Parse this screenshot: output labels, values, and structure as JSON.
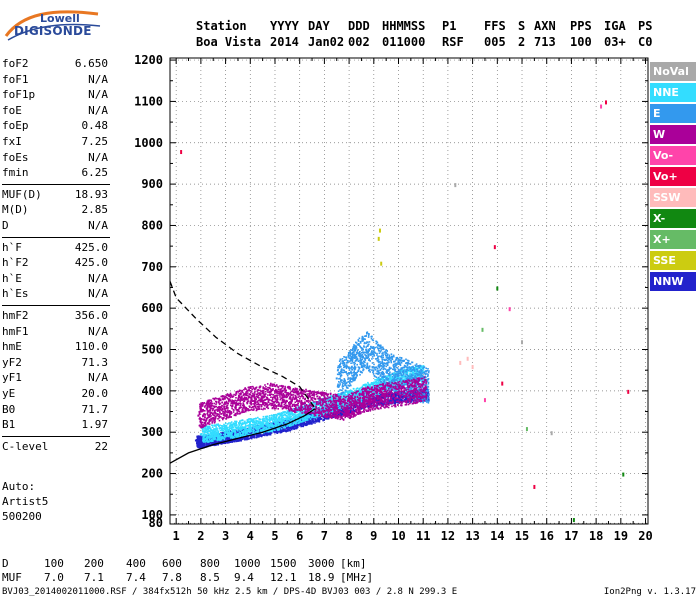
{
  "logo": {
    "line1": "Lowell",
    "line2": "DIGISONDE"
  },
  "header": {
    "row1": [
      "Station",
      "YYYY",
      "DAY",
      "DDD",
      "HHMMSS",
      "P1",
      "FFS",
      "S",
      "AXN",
      "PPS",
      "IGA",
      "PS"
    ],
    "row2": [
      "Boa Vista",
      "2014",
      "Jan02",
      "002",
      "011000",
      "RSF",
      "005",
      "2",
      "713",
      "100",
      "03+",
      "C0"
    ]
  },
  "params": [
    {
      "k": "foF2",
      "v": "6.650"
    },
    {
      "k": "foF1",
      "v": "N/A"
    },
    {
      "k": "foF1p",
      "v": "N/A"
    },
    {
      "k": "foE",
      "v": "N/A"
    },
    {
      "k": "foEp",
      "v": "0.48"
    },
    {
      "k": "fxI",
      "v": "7.25"
    },
    {
      "k": "foEs",
      "v": "N/A"
    },
    {
      "k": "fmin",
      "v": "6.25"
    },
    {
      "k": "MUF(D)",
      "v": "18.93"
    },
    {
      "k": "M(D)",
      "v": "2.85"
    },
    {
      "k": "D",
      "v": "N/A"
    },
    {
      "k": "h`F",
      "v": "425.0"
    },
    {
      "k": "h`F2",
      "v": "425.0"
    },
    {
      "k": "h`E",
      "v": "N/A"
    },
    {
      "k": "h`Es",
      "v": "N/A"
    },
    {
      "k": "hmF2",
      "v": "356.0"
    },
    {
      "k": "hmF1",
      "v": "N/A"
    },
    {
      "k": "hmE",
      "v": "110.0"
    },
    {
      "k": "yF2",
      "v": "71.3"
    },
    {
      "k": "yF1",
      "v": "N/A"
    },
    {
      "k": "yE",
      "v": "20.0"
    },
    {
      "k": "B0",
      "v": "71.7"
    },
    {
      "k": "B1",
      "v": "1.97"
    },
    {
      "k": "C-level",
      "v": "22"
    }
  ],
  "auto": {
    "line1": "Auto:",
    "line2": "Artist5",
    "line3": "500200"
  },
  "legend": [
    {
      "label": "NoVal",
      "color": "#a9a9a9"
    },
    {
      "label": "NNE",
      "color": "#33ddff"
    },
    {
      "label": "E",
      "color": "#3399ee"
    },
    {
      "label": "W",
      "color": "#aa0099"
    },
    {
      "label": "Vo-",
      "color": "#ff44aa"
    },
    {
      "label": "Vo+",
      "color": "#ee0044"
    },
    {
      "label": "SSW",
      "color": "#ffbbbb"
    },
    {
      "label": "X-",
      "color": "#118811"
    },
    {
      "label": "X+",
      "color": "#66bb66"
    },
    {
      "label": "SSE",
      "color": "#cccc11"
    },
    {
      "label": "NNW",
      "color": "#2222cc"
    }
  ],
  "bottom": {
    "d_label": "D",
    "d_values": [
      "100",
      "200",
      "400",
      "600",
      "800",
      "1000",
      "1500",
      "3000"
    ],
    "d_unit": "[km]",
    "muf_label": "MUF",
    "muf_values": [
      "7.0",
      "7.1",
      "7.4",
      "7.8",
      "8.5",
      "9.4",
      "12.1",
      "18.9"
    ],
    "muf_unit": "[MHz]"
  },
  "footer": "BVJ03_2014002011000.RSF / 384fx512h 50 kHz 2.5 km / DPS-4D BVJ03 003 / 2.8 N 299.3 E",
  "version": "Ion2Png v. 1.3.17",
  "chart_data": {
    "type": "scatter",
    "xlim": [
      0.75,
      20.1
    ],
    "ylim": [
      78,
      1205
    ],
    "x_ticks": [
      1,
      2,
      3,
      4,
      5,
      6,
      7,
      8,
      9,
      10,
      11,
      12,
      13,
      14,
      15,
      16,
      17,
      18,
      19,
      20
    ],
    "y_ticks": [
      80,
      100,
      200,
      300,
      400,
      500,
      600,
      700,
      800,
      900,
      1000,
      1100,
      1200
    ],
    "grid": "dotted",
    "legend_position": "right",
    "profile_curve": {
      "x": [
        0.75,
        1.5,
        2.5,
        3.5,
        4.5,
        5.5,
        6.2,
        6.6,
        6.65
      ],
      "y": [
        225,
        250,
        270,
        285,
        300,
        320,
        340,
        356,
        356
      ]
    },
    "profile_extrapolation": {
      "x": [
        0.75,
        1.0,
        1.8,
        2.6,
        3.5,
        4.4,
        5.3,
        6.0,
        6.65
      ],
      "y": [
        665,
        625,
        575,
        530,
        490,
        460,
        435,
        410,
        356
      ]
    },
    "series": [
      {
        "name": "NNW",
        "color": "#2222cc",
        "x": [
          1.8,
          2.0,
          2.3,
          2.6,
          2.9,
          3.2,
          3.6,
          4.0,
          4.4,
          4.8,
          5.2,
          5.6,
          6.0,
          6.4,
          7.0,
          7.5,
          8.0,
          8.6,
          9.2,
          9.8,
          10.3,
          10.8,
          11.2
        ],
        "y": [
          280,
          277,
          282,
          285,
          288,
          292,
          295,
          300,
          305,
          310,
          315,
          320,
          328,
          335,
          345,
          355,
          360,
          375,
          380,
          385,
          388,
          390,
          392
        ]
      },
      {
        "name": "NNE",
        "color": "#33ddff",
        "x": [
          2.0,
          2.5,
          3.0,
          3.5,
          4.0,
          4.5,
          5.0,
          5.5,
          6.0,
          6.5,
          7.0,
          7.5,
          8.0,
          8.5,
          9.0,
          9.5,
          10.0,
          10.5,
          11.0
        ],
        "y": [
          295,
          300,
          305,
          310,
          315,
          320,
          325,
          335,
          345,
          355,
          365,
          375,
          385,
          395,
          410,
          420,
          430,
          440,
          445
        ]
      },
      {
        "name": "E",
        "color": "#3399ee",
        "x": [
          7.5,
          8.0,
          8.3,
          8.7,
          9.2,
          9.6,
          10.0,
          10.4,
          10.8,
          11.2
        ],
        "y": [
          430,
          455,
          480,
          500,
          470,
          450,
          440,
          430,
          420,
          410
        ]
      },
      {
        "name": "W",
        "color": "#aa0099",
        "x": [
          1.9,
          2.3,
          2.8,
          3.3,
          3.8,
          4.3,
          4.8,
          5.3,
          5.8,
          6.3,
          6.8,
          7.3,
          7.8,
          8.2,
          8.6,
          9.0,
          9.4,
          10.0,
          10.6,
          11.1
        ],
        "y": [
          340,
          350,
          360,
          370,
          380,
          385,
          390,
          385,
          380,
          375,
          370,
          365,
          360,
          370,
          380,
          385,
          390,
          395,
          400,
          410
        ]
      },
      {
        "name": "Vo-",
        "color": "#ff44aa",
        "x": [
          13.5,
          14.5,
          18.2
        ],
        "y": [
          380,
          600,
          1090
        ]
      },
      {
        "name": "Vo+",
        "color": "#ee0044",
        "x": [
          13.9,
          14.2,
          15.5,
          18.4,
          19.3,
          1.2
        ],
        "y": [
          750,
          420,
          170,
          1100,
          400,
          980
        ]
      },
      {
        "name": "SSW",
        "color": "#ffbbbb",
        "x": [
          12.5,
          12.8,
          13.0
        ],
        "y": [
          470,
          480,
          460
        ]
      },
      {
        "name": "X-",
        "color": "#118811",
        "x": [
          14.0,
          17.1,
          19.1
        ],
        "y": [
          650,
          90,
          200
        ]
      },
      {
        "name": "X+",
        "color": "#66bb66",
        "x": [
          15.2,
          13.4
        ],
        "y": [
          310,
          550
        ]
      },
      {
        "name": "SSE",
        "color": "#cccc11",
        "x": [
          9.2,
          9.25,
          9.3
        ],
        "y": [
          770,
          790,
          710
        ]
      },
      {
        "name": "NoVal",
        "color": "#a9a9a9",
        "x": [
          12.3,
          15.0,
          16.2
        ],
        "y": [
          900,
          520,
          300
        ]
      }
    ]
  }
}
